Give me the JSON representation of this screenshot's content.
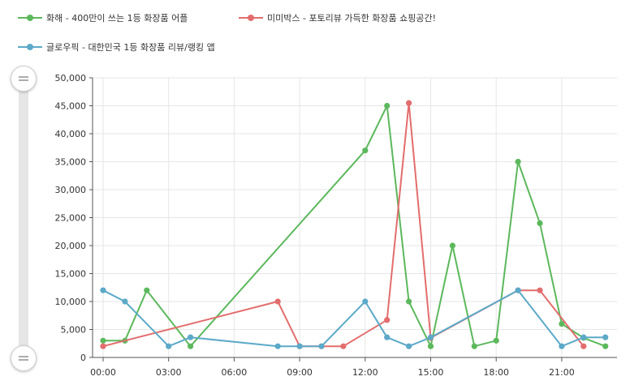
{
  "chart_data": {
    "type": "line",
    "x": [
      "00:00",
      "01:00",
      "02:00",
      "03:00",
      "04:00",
      "05:00",
      "06:00",
      "07:00",
      "08:00",
      "09:00",
      "10:00",
      "11:00",
      "12:00",
      "13:00",
      "14:00",
      "15:00",
      "16:00",
      "17:00",
      "18:00",
      "19:00",
      "20:00",
      "21:00",
      "22:00",
      "23:00"
    ],
    "x_tick_labels": [
      "00:00",
      "03:00",
      "06:00",
      "09:00",
      "12:00",
      "15:00",
      "18:00",
      "21:00"
    ],
    "y_tick_labels": [
      "0",
      "5,000",
      "10,000",
      "15,000",
      "20,000",
      "25,000",
      "30,000",
      "35,000",
      "40,000",
      "45,000",
      "50,000"
    ],
    "ylim": [
      0,
      50000
    ],
    "grid": true,
    "legend_position": "top-left",
    "series": [
      {
        "name": "화해 - 400만이 쓰는 1등 화장품 어플",
        "color": "#5cb85c",
        "values": [
          3000,
          3000,
          12000,
          null,
          2000,
          null,
          null,
          null,
          null,
          null,
          null,
          null,
          37000,
          45000,
          10000,
          2000,
          20000,
          2000,
          3000,
          35000,
          24000,
          6000,
          3500,
          2000
        ]
      },
      {
        "name": "미미박스 - 포토리뷰 가득한 화장품 쇼핑공간!",
        "color": "#e36d6d",
        "values": [
          2000,
          null,
          null,
          null,
          null,
          null,
          null,
          null,
          10000,
          2000,
          2000,
          2000,
          null,
          6700,
          45500,
          3500,
          null,
          null,
          null,
          12000,
          12000,
          null,
          2000,
          null
        ]
      },
      {
        "name": "글로우픽 - 대한민국 1등 화장품 리뷰/랭킹 앱",
        "color": "#5ca9c8",
        "values": [
          12000,
          10000,
          null,
          2000,
          3600,
          null,
          null,
          null,
          2000,
          2000,
          2000,
          null,
          10000,
          3600,
          2000,
          3600,
          null,
          null,
          null,
          12000,
          null,
          2000,
          3600,
          3600
        ]
      }
    ]
  }
}
